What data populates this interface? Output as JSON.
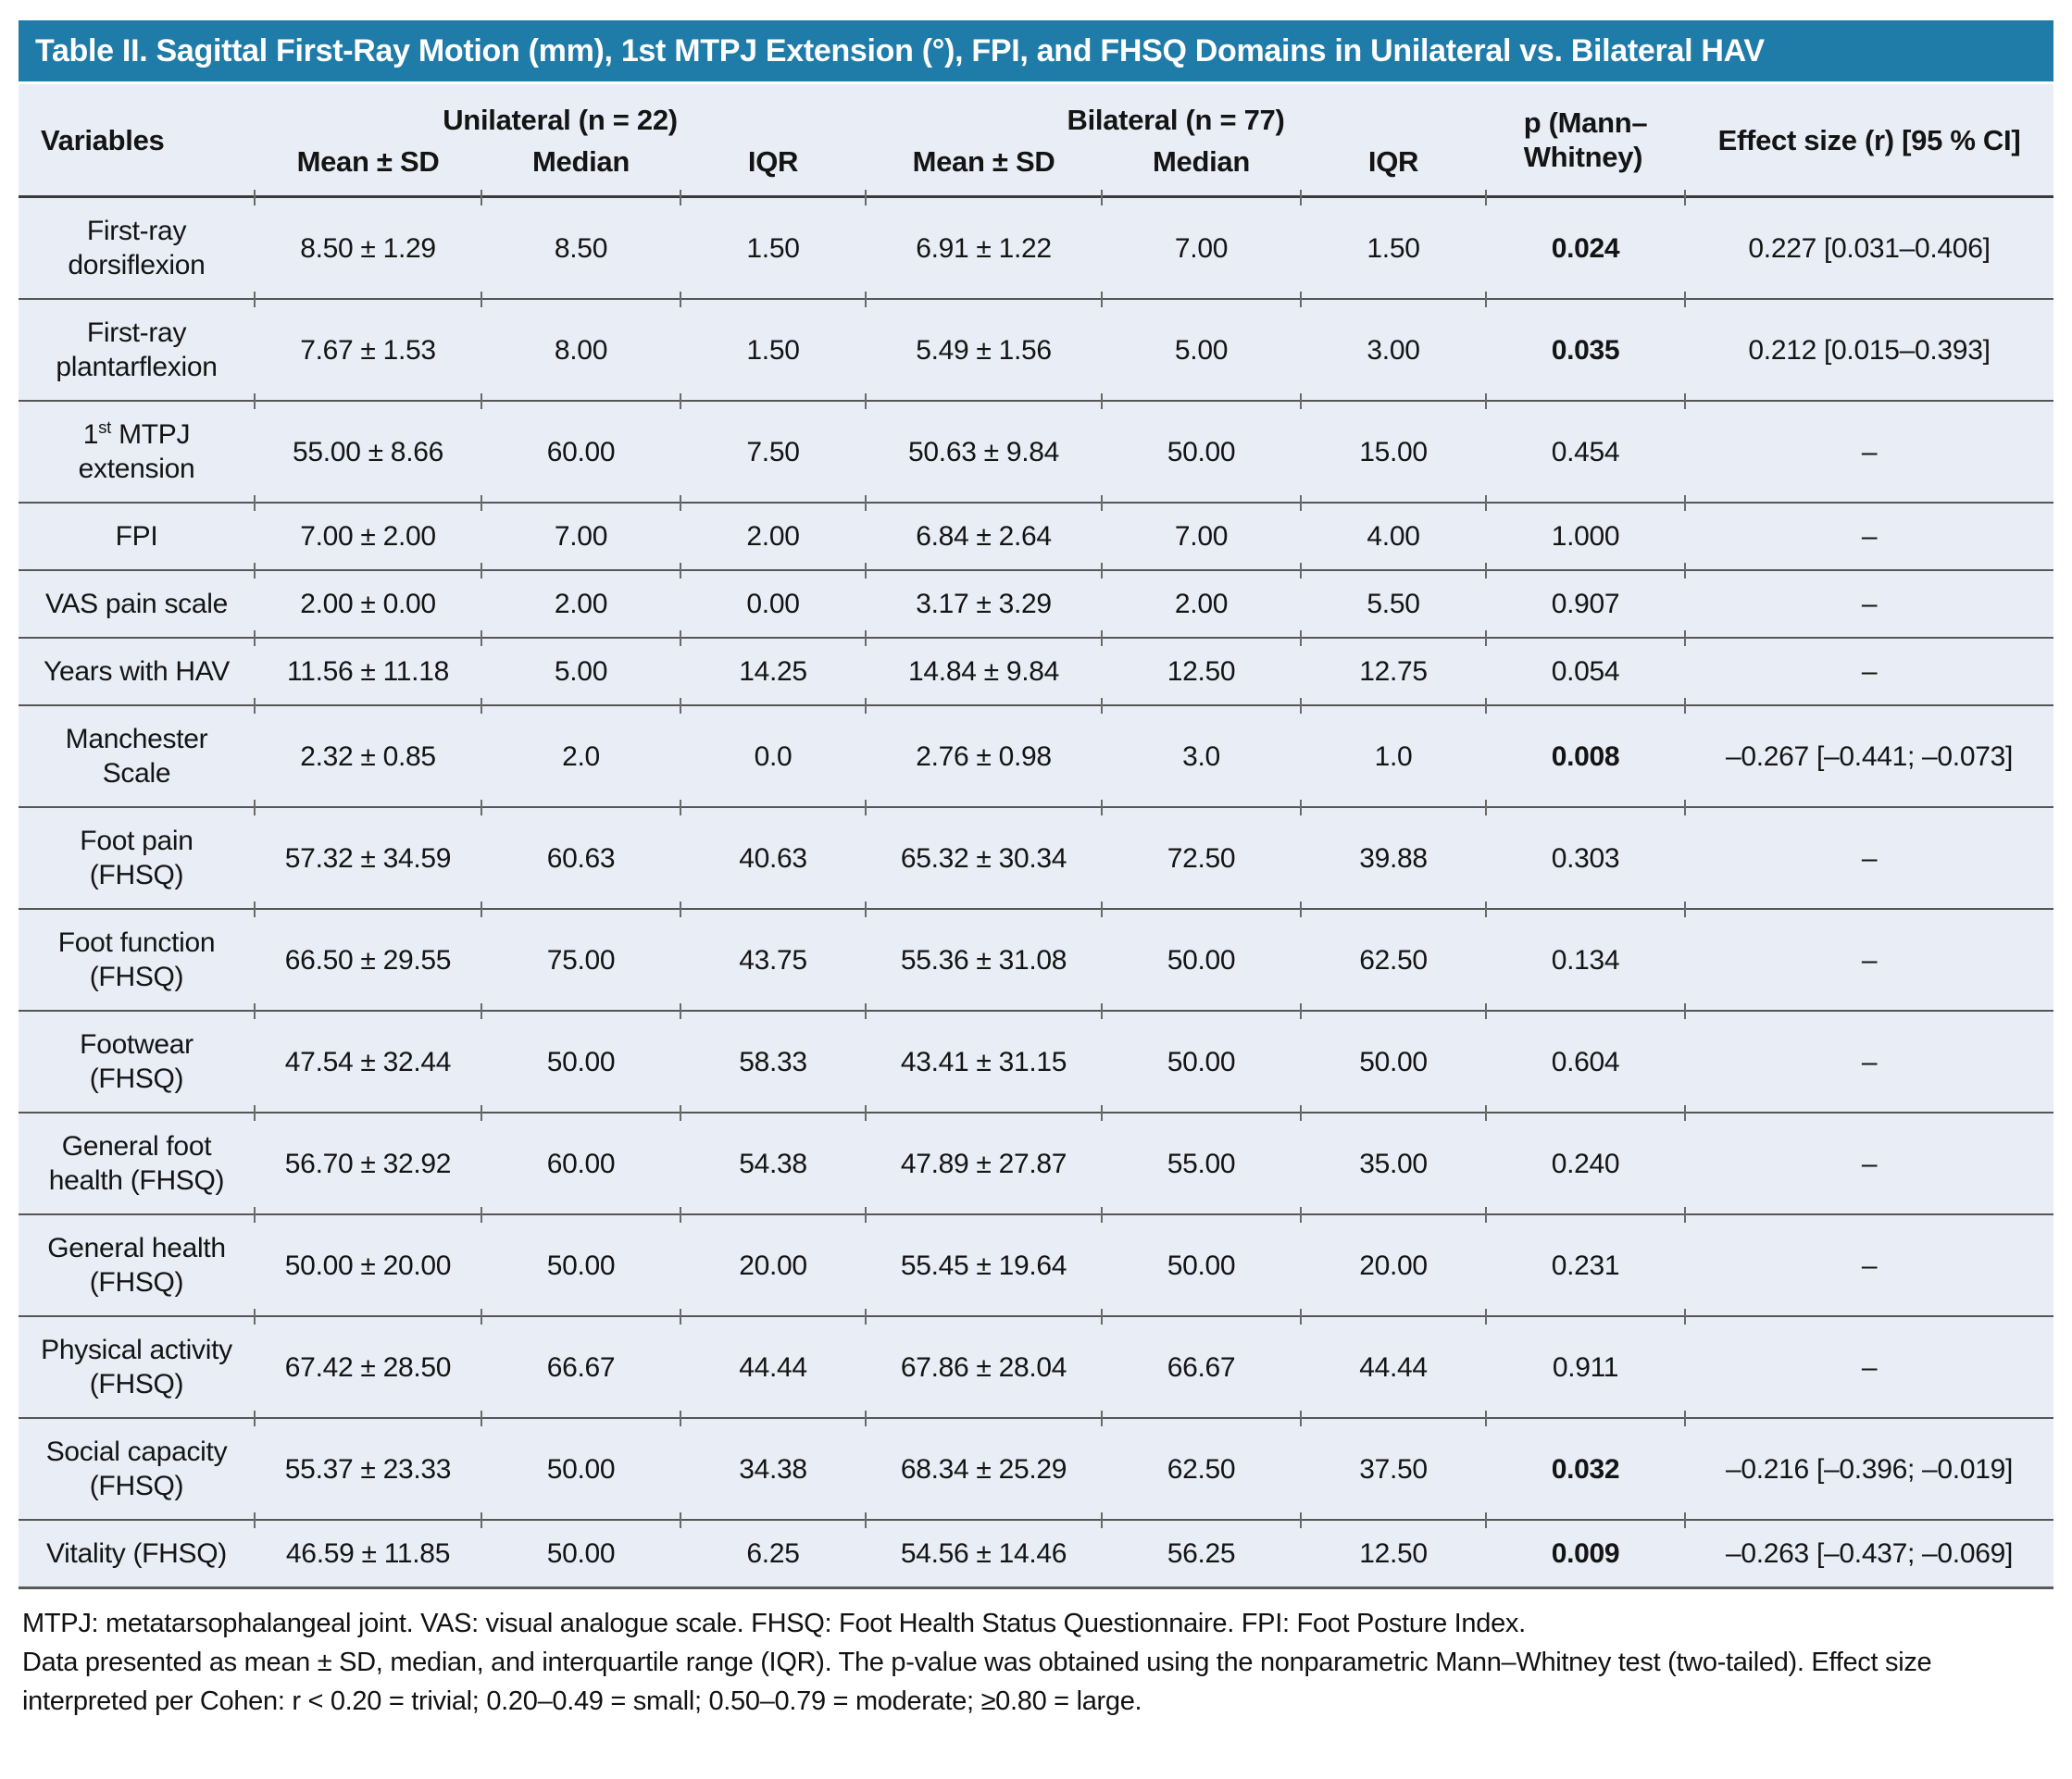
{
  "title": "Table II. Sagittal First-Ray Motion (mm), 1st MTPJ Extension (°), FPI, and FHSQ Domains in Unilateral vs. Bilateral HAV",
  "colors": {
    "title_bar_bg": "#1F7BA8",
    "title_text": "#FFFFFF",
    "table_bg": "#E9EDF5",
    "rule": "#565656"
  },
  "table": {
    "header": {
      "variables": "Variables",
      "group_unilateral": "Unilateral (n = 22)",
      "group_bilateral": "Bilateral (n = 77)",
      "sub": [
        "Mean ± SD",
        "Median",
        "IQR"
      ],
      "p_line1": "p (Mann–",
      "p_line2": "Whitney)",
      "effect_size": "Effect size (r) [95 % CI]"
    },
    "rows": [
      {
        "variable": "First-ray dorsiflexion",
        "uni": {
          "mean_sd": "8.50 ± 1.29",
          "median": "8.50",
          "iqr": "1.50"
        },
        "bil": {
          "mean_sd": "6.91 ± 1.22",
          "median": "7.00",
          "iqr": "1.50"
        },
        "p": "0.024",
        "p_bold": true,
        "effect": "0.227 [0.031–0.406]"
      },
      {
        "variable": "First-ray plantarflexion",
        "uni": {
          "mean_sd": "7.67 ± 1.53",
          "median": "8.00",
          "iqr": "1.50"
        },
        "bil": {
          "mean_sd": "5.49 ± 1.56",
          "median": "5.00",
          "iqr": "3.00"
        },
        "p": "0.035",
        "p_bold": true,
        "effect": "0.212 [0.015–0.393]"
      },
      {
        "variable": "1^st^ MTPJ extension",
        "uni": {
          "mean_sd": "55.00 ± 8.66",
          "median": "60.00",
          "iqr": "7.50"
        },
        "bil": {
          "mean_sd": "50.63 ± 9.84",
          "median": "50.00",
          "iqr": "15.00"
        },
        "p": "0.454",
        "p_bold": false,
        "effect": "–"
      },
      {
        "variable": "FPI",
        "uni": {
          "mean_sd": "7.00 ± 2.00",
          "median": "7.00",
          "iqr": "2.00"
        },
        "bil": {
          "mean_sd": "6.84 ± 2.64",
          "median": "7.00",
          "iqr": "4.00"
        },
        "p": "1.000",
        "p_bold": false,
        "effect": "–"
      },
      {
        "variable": "VAS pain scale",
        "uni": {
          "mean_sd": "2.00 ± 0.00",
          "median": "2.00",
          "iqr": "0.00"
        },
        "bil": {
          "mean_sd": "3.17 ± 3.29",
          "median": "2.00",
          "iqr": "5.50"
        },
        "p": "0.907",
        "p_bold": false,
        "effect": "–"
      },
      {
        "variable": "Years with HAV",
        "uni": {
          "mean_sd": "11.56 ± 11.18",
          "median": "5.00",
          "iqr": "14.25"
        },
        "bil": {
          "mean_sd": "14.84 ± 9.84",
          "median": "12.50",
          "iqr": "12.75"
        },
        "p": "0.054",
        "p_bold": false,
        "effect": "–"
      },
      {
        "variable": "Manchester Scale",
        "uni": {
          "mean_sd": "2.32 ± 0.85",
          "median": "2.0",
          "iqr": "0.0"
        },
        "bil": {
          "mean_sd": "2.76 ± 0.98",
          "median": "3.0",
          "iqr": "1.0"
        },
        "p": "0.008",
        "p_bold": true,
        "effect": "–0.267 [–0.441; –0.073]"
      },
      {
        "variable": "Foot pain (FHSQ)",
        "uni": {
          "mean_sd": "57.32 ± 34.59",
          "median": "60.63",
          "iqr": "40.63"
        },
        "bil": {
          "mean_sd": "65.32 ± 30.34",
          "median": "72.50",
          "iqr": "39.88"
        },
        "p": "0.303",
        "p_bold": false,
        "effect": "–"
      },
      {
        "variable": "Foot function (FHSQ)",
        "uni": {
          "mean_sd": "66.50 ± 29.55",
          "median": "75.00",
          "iqr": "43.75"
        },
        "bil": {
          "mean_sd": "55.36 ± 31.08",
          "median": "50.00",
          "iqr": "62.50"
        },
        "p": "0.134",
        "p_bold": false,
        "effect": "–"
      },
      {
        "variable": "Footwear (FHSQ)",
        "uni": {
          "mean_sd": "47.54 ± 32.44",
          "median": "50.00",
          "iqr": "58.33"
        },
        "bil": {
          "mean_sd": "43.41 ± 31.15",
          "median": "50.00",
          "iqr": "50.00"
        },
        "p": "0.604",
        "p_bold": false,
        "effect": "–"
      },
      {
        "variable": "General foot health (FHSQ)",
        "uni": {
          "mean_sd": "56.70 ± 32.92",
          "median": "60.00",
          "iqr": "54.38"
        },
        "bil": {
          "mean_sd": "47.89 ± 27.87",
          "median": "55.00",
          "iqr": "35.00"
        },
        "p": "0.240",
        "p_bold": false,
        "effect": "–"
      },
      {
        "variable": "General health (FHSQ)",
        "uni": {
          "mean_sd": "50.00 ± 20.00",
          "median": "50.00",
          "iqr": "20.00"
        },
        "bil": {
          "mean_sd": "55.45 ± 19.64",
          "median": "50.00",
          "iqr": "20.00"
        },
        "p": "0.231",
        "p_bold": false,
        "effect": "–"
      },
      {
        "variable": "Physical activity (FHSQ)",
        "uni": {
          "mean_sd": "67.42 ± 28.50",
          "median": "66.67",
          "iqr": "44.44"
        },
        "bil": {
          "mean_sd": "67.86 ± 28.04",
          "median": "66.67",
          "iqr": "44.44"
        },
        "p": "0.911",
        "p_bold": false,
        "effect": "–"
      },
      {
        "variable": "Social capacity (FHSQ)",
        "uni": {
          "mean_sd": "55.37 ± 23.33",
          "median": "50.00",
          "iqr": "34.38"
        },
        "bil": {
          "mean_sd": "68.34 ± 25.29",
          "median": "62.50",
          "iqr": "37.50"
        },
        "p": "0.032",
        "p_bold": true,
        "effect": "–0.216 [–0.396; –0.019]"
      },
      {
        "variable": "Vitality (FHSQ)",
        "uni": {
          "mean_sd": "46.59 ± 11.85",
          "median": "50.00",
          "iqr": "6.25"
        },
        "bil": {
          "mean_sd": "54.56 ± 14.46",
          "median": "56.25",
          "iqr": "12.50"
        },
        "p": "0.009",
        "p_bold": true,
        "effect": "–0.263 [–0.437; –0.069]"
      }
    ]
  },
  "footnotes": [
    "MTPJ: metatarsophalangeal joint. VAS: visual analogue scale. FHSQ: Foot Health Status Questionnaire. FPI: Foot Posture Index.",
    "Data presented as mean ± SD, median, and interquartile range (IQR). The p-value was obtained using the nonparametric Mann–Whitney test (two-tailed). Effect size interpreted per Cohen: r < 0.20 = trivial; 0.20–0.49 = small; 0.50–0.79 = moderate; ≥0.80 = large."
  ]
}
